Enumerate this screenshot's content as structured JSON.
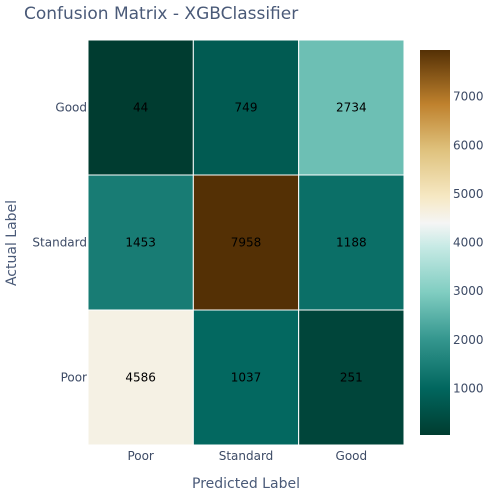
{
  "chart_data": {
    "type": "heatmap",
    "title": "Confusion Matrix - XGBClassifier",
    "xlabel": "Predicted Label",
    "ylabel": "Actual Label",
    "x_categories": [
      "Poor",
      "Standard",
      "Good"
    ],
    "y_categories": [
      "Good",
      "Standard",
      "Poor"
    ],
    "values": [
      [
        44,
        749,
        2734
      ],
      [
        1453,
        7958,
        1188
      ],
      [
        4586,
        1037,
        251
      ]
    ],
    "colorscale": "BrBG",
    "colorbar": {
      "range": [
        44,
        7958
      ],
      "ticks": [
        1000,
        2000,
        3000,
        4000,
        5000,
        6000,
        7000
      ]
    }
  }
}
